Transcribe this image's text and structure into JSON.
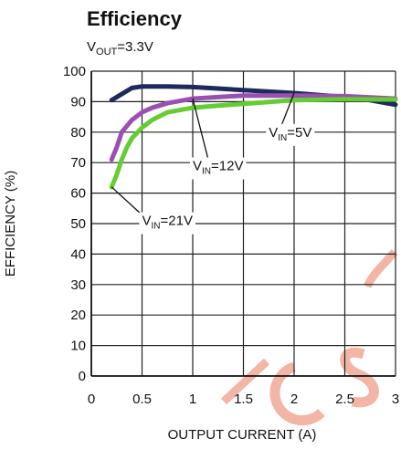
{
  "chart_data": {
    "type": "line",
    "title": "Efficiency",
    "subtitle": {
      "main": "V",
      "sub": "OUT",
      "rest": "=3.3V"
    },
    "xlabel": "OUTPUT CURRENT (A)",
    "ylabel": "EFFICIENCY (%)",
    "xlim": [
      0,
      3
    ],
    "ylim": [
      0,
      100
    ],
    "xticks": [
      0,
      0.5,
      1,
      1.5,
      2,
      2.5,
      3
    ],
    "xtick_labels": [
      "0",
      "0.5",
      "1",
      "1.5",
      "2",
      "2.5",
      "3"
    ],
    "yticks": [
      0,
      10,
      20,
      30,
      40,
      50,
      60,
      70,
      80,
      90,
      100
    ],
    "ytick_labels": [
      "0",
      "10",
      "20",
      "30",
      "40",
      "50",
      "60",
      "70",
      "80",
      "90",
      "100"
    ],
    "grid": true,
    "series": [
      {
        "name_main": "V",
        "name_sub": "IN",
        "name_rest": "=5V",
        "color": "#1f2a5c",
        "x": [
          0.2,
          0.3,
          0.4,
          0.5,
          0.75,
          1.0,
          1.25,
          1.5,
          2.0,
          2.5,
          2.75,
          3.0
        ],
        "y": [
          90.5,
          92.5,
          94.5,
          95,
          95,
          94.8,
          94.3,
          93.8,
          92.8,
          91.5,
          90.5,
          89
        ]
      },
      {
        "name_main": "V",
        "name_sub": "IN",
        "name_rest": "=12V",
        "color": "#9b4fb2",
        "x": [
          0.2,
          0.25,
          0.3,
          0.4,
          0.5,
          0.6,
          0.75,
          1.0,
          1.25,
          1.5,
          2.0,
          2.5,
          3.0
        ],
        "y": [
          71,
          75,
          80,
          84,
          86.5,
          88,
          89.5,
          91,
          91.5,
          92,
          92,
          91.8,
          91
        ]
      },
      {
        "name_main": "V",
        "name_sub": "IN",
        "name_rest": "=21V",
        "color": "#66cc33",
        "x": [
          0.2,
          0.25,
          0.3,
          0.35,
          0.4,
          0.5,
          0.6,
          0.75,
          1.0,
          1.25,
          1.5,
          2.0,
          2.5,
          3.0
        ],
        "y": [
          62,
          66,
          71,
          75,
          78,
          81.5,
          84,
          86.5,
          88,
          88.7,
          89.3,
          90.5,
          90.8,
          90.7
        ]
      }
    ],
    "annotations": [
      {
        "series": 0,
        "label_x": 1.75,
        "label_y": 80
      },
      {
        "series": 1,
        "label_x": 1.0,
        "label_y": 69
      },
      {
        "series": 2,
        "label_x": 0.5,
        "label_y": 51
      }
    ]
  },
  "watermark": {
    "text": "LCSC",
    "color": "#f0a896"
  }
}
